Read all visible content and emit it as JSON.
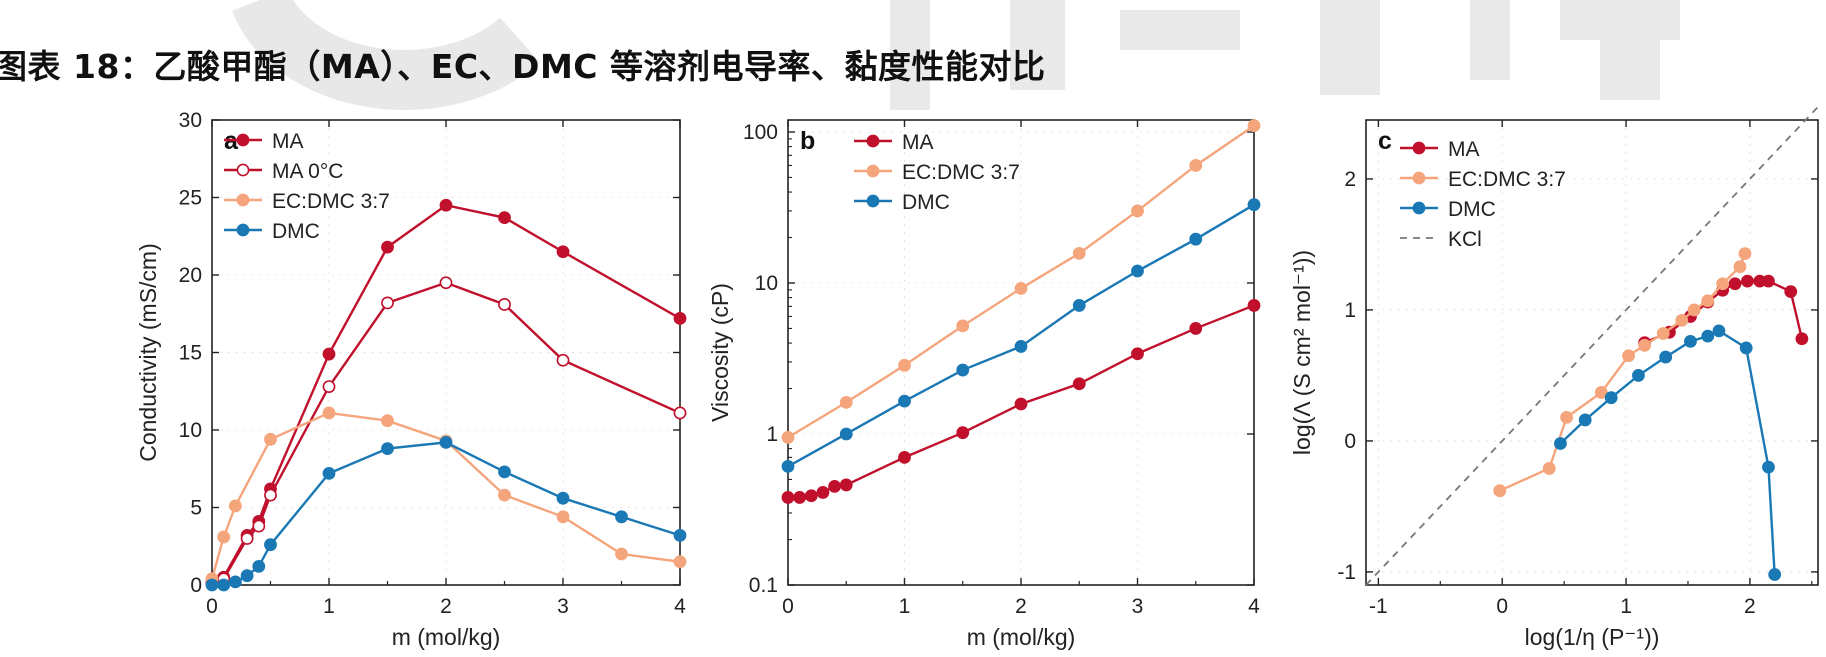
{
  "figure_title": "图表 18：乙酸甲酯（MA）、EC、DMC 等溶剂电导率、黏度性能对比",
  "colors": {
    "MA": "#c0102c",
    "EC_DMC": "#f4a57c",
    "DMC": "#1a78b4",
    "KCl": "#777777",
    "watermark": "#e6e6e6"
  },
  "chart_data": [
    {
      "type": "line",
      "panel_label": "a",
      "xlabel": "m (mol/kg)",
      "ylabel": "Conductivity (mS/cm)",
      "xlim": [
        0,
        4
      ],
      "ylim": [
        0,
        30
      ],
      "xticks": [
        "0",
        "1",
        "2",
        "3",
        "4"
      ],
      "yticks": [
        "0",
        "5",
        "10",
        "15",
        "20",
        "25",
        "30"
      ],
      "xtick_values": [
        0,
        1,
        2,
        3,
        4
      ],
      "ytick_values": [
        0,
        5,
        10,
        15,
        20,
        25,
        30
      ],
      "legend_position": "top-left",
      "series": [
        {
          "name": "MA",
          "key": "MA",
          "marker": "filled",
          "x": [
            0,
            0.1,
            0.3,
            0.4,
            0.5,
            1.0,
            1.5,
            2.0,
            2.5,
            3.0,
            4.0
          ],
          "y": [
            0.2,
            0.5,
            3.2,
            4.1,
            6.2,
            14.9,
            21.8,
            24.5,
            23.7,
            21.5,
            17.2
          ]
        },
        {
          "name": "MA 0°C",
          "key": "MA",
          "marker": "open",
          "x": [
            0,
            0.1,
            0.3,
            0.4,
            0.5,
            1.0,
            1.5,
            2.0,
            2.5,
            3.0,
            4.0
          ],
          "y": [
            0.1,
            0.4,
            3.0,
            3.8,
            5.8,
            12.8,
            18.2,
            19.5,
            18.1,
            14.5,
            11.1
          ]
        },
        {
          "name": "EC:DMC 3:7",
          "key": "EC_DMC",
          "marker": "filled",
          "x": [
            0,
            0.1,
            0.2,
            0.5,
            1.0,
            1.5,
            2.0,
            2.5,
            3.0,
            3.5,
            4.0
          ],
          "y": [
            0.4,
            3.1,
            5.1,
            9.4,
            11.1,
            10.6,
            9.3,
            5.8,
            4.4,
            2.0,
            1.5
          ]
        },
        {
          "name": "DMC",
          "key": "DMC",
          "marker": "filled",
          "x": [
            0,
            0.1,
            0.2,
            0.3,
            0.4,
            0.5,
            1.0,
            1.5,
            2.0,
            2.5,
            3.0,
            3.5,
            4.0
          ],
          "y": [
            0,
            0,
            0.2,
            0.6,
            1.2,
            2.6,
            7.2,
            8.8,
            9.2,
            7.3,
            5.6,
            4.4,
            3.2
          ]
        }
      ]
    },
    {
      "type": "line",
      "panel_label": "b",
      "xlabel": "m (mol/kg)",
      "ylabel": "Viscosity (cP)",
      "xlim": [
        0,
        4
      ],
      "ylim": [
        0.1,
        120
      ],
      "yscale": "log",
      "xticks": [
        "0",
        "1",
        "2",
        "3",
        "4"
      ],
      "yticks": [
        "0.1",
        "1",
        "10",
        "100"
      ],
      "xtick_values": [
        0,
        1,
        2,
        3,
        4
      ],
      "ytick_values": [
        0.1,
        1,
        10,
        100
      ],
      "legend_position": "top-left",
      "series": [
        {
          "name": "MA",
          "key": "MA",
          "marker": "filled",
          "x": [
            0,
            0.1,
            0.2,
            0.3,
            0.4,
            0.5,
            1.0,
            1.5,
            2.0,
            2.5,
            3.0,
            3.5,
            4.0
          ],
          "y": [
            0.38,
            0.38,
            0.39,
            0.41,
            0.45,
            0.46,
            0.7,
            1.02,
            1.58,
            2.15,
            3.4,
            5.0,
            7.1
          ]
        },
        {
          "name": "EC:DMC 3:7",
          "key": "EC_DMC",
          "marker": "filled",
          "x": [
            0,
            0.5,
            1.0,
            1.5,
            2.0,
            2.5,
            3.0,
            3.5,
            4.0
          ],
          "y": [
            0.95,
            1.62,
            2.85,
            5.2,
            9.2,
            15.7,
            30.0,
            60.0,
            110.0
          ]
        },
        {
          "name": "DMC",
          "key": "DMC",
          "marker": "filled",
          "x": [
            0,
            0.5,
            1.0,
            1.5,
            2.0,
            2.5,
            3.0,
            3.5,
            4.0
          ],
          "y": [
            0.61,
            1.0,
            1.65,
            2.65,
            3.8,
            7.1,
            12.0,
            19.5,
            33.0
          ]
        }
      ]
    },
    {
      "type": "line",
      "panel_label": "c",
      "xlabel": "log(1/η (P⁻¹))",
      "ylabel": "log(Λ (S cm² mol⁻¹))",
      "xlim": [
        -1.1,
        2.55
      ],
      "ylim": [
        -1.1,
        2.45
      ],
      "xticks": [
        "-1",
        "0",
        "1",
        "2"
      ],
      "yticks": [
        "-1",
        "0",
        "1",
        "2"
      ],
      "xtick_values": [
        -1,
        0,
        1,
        2
      ],
      "ytick_values": [
        -1,
        0,
        1,
        2
      ],
      "legend_position": "top-left",
      "series": [
        {
          "name": "MA",
          "key": "MA",
          "marker": "filled",
          "x": [
            1.15,
            1.35,
            1.52,
            1.66,
            1.78,
            1.88,
            1.98,
            2.08,
            2.15,
            2.33,
            2.42
          ],
          "y": [
            0.75,
            0.83,
            0.95,
            1.06,
            1.15,
            1.2,
            1.22,
            1.22,
            1.22,
            1.14,
            0.78
          ]
        },
        {
          "name": "EC:DMC 3:7",
          "key": "EC_DMC",
          "marker": "filled",
          "x": [
            -0.02,
            0.38,
            0.52,
            0.8,
            1.02,
            1.15,
            1.3,
            1.45,
            1.55,
            1.66,
            1.78,
            1.92,
            1.96
          ],
          "y": [
            -0.38,
            -0.21,
            0.18,
            0.37,
            0.65,
            0.73,
            0.82,
            0.92,
            1.0,
            1.07,
            1.2,
            1.33,
            1.43
          ]
        },
        {
          "name": "DMC",
          "key": "DMC",
          "marker": "filled",
          "x": [
            0.47,
            0.67,
            0.88,
            1.1,
            1.32,
            1.52,
            1.66,
            1.75,
            1.97,
            2.15,
            2.2
          ],
          "y": [
            -0.02,
            0.16,
            0.33,
            0.5,
            0.64,
            0.76,
            0.8,
            0.84,
            0.71,
            -0.2,
            -1.02
          ]
        },
        {
          "name": "KCl",
          "key": "KCl",
          "marker": "none",
          "dashed": true,
          "x": [
            -1.1,
            2.55
          ],
          "y": [
            -1.1,
            2.55
          ]
        }
      ]
    }
  ]
}
